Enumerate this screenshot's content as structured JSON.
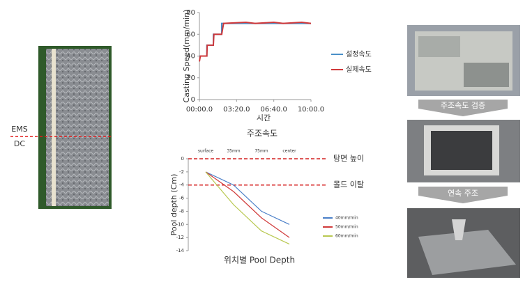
{
  "chart_data": [
    {
      "type": "line",
      "title": "주조속도",
      "x_label": "시간",
      "y_label": "Casting Speed(mm/min)",
      "xlim": [
        0,
        600
      ],
      "xticks": [
        {
          "value": 0,
          "label": "00:00.0"
        },
        {
          "value": 200,
          "label": "03:20.0"
        },
        {
          "value": 400,
          "label": "06:40.0"
        },
        {
          "value": 600,
          "label": "10:00.0"
        }
      ],
      "ylim": [
        0,
        80
      ],
      "yticks": [
        0,
        20,
        40,
        60,
        80
      ],
      "series": [
        {
          "name": "설정속도",
          "color": "#4a90c8",
          "x": [
            0,
            40,
            40,
            75,
            75,
            120,
            120,
            600
          ],
          "values": [
            40,
            40,
            50,
            50,
            60,
            60,
            70,
            70
          ]
        },
        {
          "name": "실제속도",
          "color": "#d0393b",
          "x": [
            0,
            5,
            40,
            42,
            75,
            78,
            120,
            130,
            250,
            300,
            400,
            450,
            550,
            600
          ],
          "values": [
            35,
            40,
            40,
            50,
            50,
            60,
            60,
            70,
            71,
            70,
            71,
            70,
            71,
            70
          ]
        }
      ]
    },
    {
      "type": "line",
      "title": "위치별 Pool Depth",
      "y_label": "Pool depth (Cm)",
      "categories": [
        "surface",
        "35mm",
        "75mm",
        "center"
      ],
      "ylim": [
        -14,
        0
      ],
      "yticks": [
        0,
        -2,
        -4,
        -6,
        -8,
        -10,
        -12,
        -14
      ],
      "hlines": [
        {
          "value": 0,
          "label": "탕면 높이"
        },
        {
          "value": -4,
          "label": "몰드 이탈"
        }
      ],
      "hline_color": "#d42020",
      "series": [
        {
          "name": "40mm/min",
          "color": "#4a7fc8",
          "values": [
            -2,
            -4,
            -8,
            -10
          ]
        },
        {
          "name": "50mm/min",
          "color": "#d03a3a",
          "values": [
            -2,
            -5,
            -9,
            -12
          ]
        },
        {
          "name": "60mm/min",
          "color": "#b8c850",
          "values": [
            -2,
            -7,
            -11,
            -13
          ]
        }
      ]
    }
  ],
  "photo_labels": {
    "ems": "EMS",
    "dc": "DC",
    "step1": "주조속도 검증",
    "step2": "연속 주조"
  }
}
